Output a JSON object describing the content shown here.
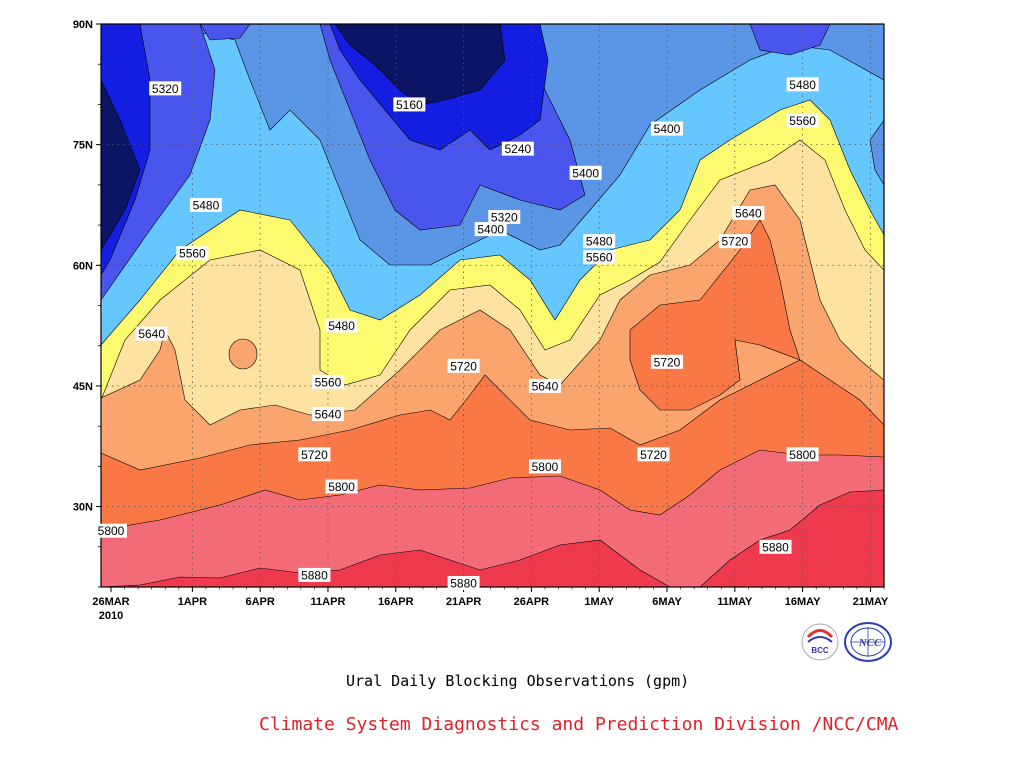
{
  "chart_data": {
    "type": "heatmap",
    "subtype": "filled contour (time-latitude Hovmoller)",
    "title": "Ural Daily Blocking Observations (gpm)",
    "subtitle": "Climate System Diagnostics and Prediction Division /NCC/CMA",
    "x_axis": {
      "kind": "date",
      "range": [
        "2010-03-26",
        "2010-05-22"
      ],
      "ticks": [
        "26MAR",
        "1APR",
        "6APR",
        "11APR",
        "16APR",
        "21APR",
        "26APR",
        "1MAY",
        "6MAY",
        "11MAY",
        "16MAY",
        "21MAY"
      ],
      "year_label": "2010"
    },
    "y_axis": {
      "kind": "latitude",
      "range": [
        20,
        90
      ],
      "ticks": [
        "30N",
        "45N",
        "60N",
        "75N",
        "90N"
      ],
      "tick_values": [
        30,
        45,
        60,
        75,
        90
      ]
    },
    "grid": "dotted",
    "contour_levels": [
      5160,
      5240,
      5320,
      5400,
      5480,
      5560,
      5640,
      5720,
      5800,
      5880
    ],
    "fill_colors": {
      "below_5160": "#0c1565",
      "5160_5240": "#141ee0",
      "5240_5320": "#4a55ee",
      "5320_5400": "#5a95e6",
      "5400_5480": "#66c6ff",
      "5480_5560": "#fdfa6f",
      "5560_5640": "#fde2a2",
      "5640_5720": "#fba56e",
      "5720_5800": "#fa7845",
      "5800_5880": "#f46b78",
      "above_5880": "#ef3a4d"
    },
    "contour_labels": [
      {
        "value": 5160,
        "date": "2010-04-17",
        "lat": 80
      },
      {
        "value": 5240,
        "date": "2010-04-25",
        "lat": 74.5
      },
      {
        "value": 5320,
        "date": "2010-03-30",
        "lat": 82
      },
      {
        "value": 5320,
        "date": "2010-04-24",
        "lat": 66
      },
      {
        "value": 5400,
        "date": "2010-04-23",
        "lat": 64.5
      },
      {
        "value": 5400,
        "date": "2010-04-30",
        "lat": 71.5
      },
      {
        "value": 5400,
        "date": "2010-05-06",
        "lat": 77
      },
      {
        "value": 5480,
        "date": "2010-04-02",
        "lat": 67.5
      },
      {
        "value": 5480,
        "date": "2010-04-12",
        "lat": 52.5
      },
      {
        "value": 5480,
        "date": "2010-05-01",
        "lat": 63
      },
      {
        "value": 5480,
        "date": "2010-05-16",
        "lat": 82.5
      },
      {
        "value": 5560,
        "date": "2010-04-01",
        "lat": 61.5
      },
      {
        "value": 5560,
        "date": "2010-04-11",
        "lat": 45.5
      },
      {
        "value": 5560,
        "date": "2010-05-01",
        "lat": 61
      },
      {
        "value": 5560,
        "date": "2010-05-16",
        "lat": 78
      },
      {
        "value": 5640,
        "date": "2010-03-29",
        "lat": 51.5
      },
      {
        "value": 5640,
        "date": "2010-04-11",
        "lat": 41.5
      },
      {
        "value": 5640,
        "date": "2010-04-27",
        "lat": 45
      },
      {
        "value": 5640,
        "date": "2010-05-12",
        "lat": 66.5
      },
      {
        "value": 5720,
        "date": "2010-04-10",
        "lat": 36.5
      },
      {
        "value": 5720,
        "date": "2010-04-21",
        "lat": 47.5
      },
      {
        "value": 5720,
        "date": "2010-05-05",
        "lat": 36.5
      },
      {
        "value": 5720,
        "date": "2010-05-06",
        "lat": 48
      },
      {
        "value": 5720,
        "date": "2010-05-11",
        "lat": 63
      },
      {
        "value": 5800,
        "date": "2010-03-26",
        "lat": 27
      },
      {
        "value": 5800,
        "date": "2010-04-12",
        "lat": 32.5
      },
      {
        "value": 5800,
        "date": "2010-04-27",
        "lat": 35
      },
      {
        "value": 5800,
        "date": "2010-05-16",
        "lat": 36.5
      },
      {
        "value": 5880,
        "date": "2010-04-10",
        "lat": 21.5
      },
      {
        "value": 5880,
        "date": "2010-04-21",
        "lat": 20.5
      },
      {
        "value": 5880,
        "date": "2010-05-14",
        "lat": 25
      }
    ]
  },
  "logos": {
    "bcc": {
      "text": "BCC"
    },
    "ncc": {
      "text": "NCC"
    }
  }
}
